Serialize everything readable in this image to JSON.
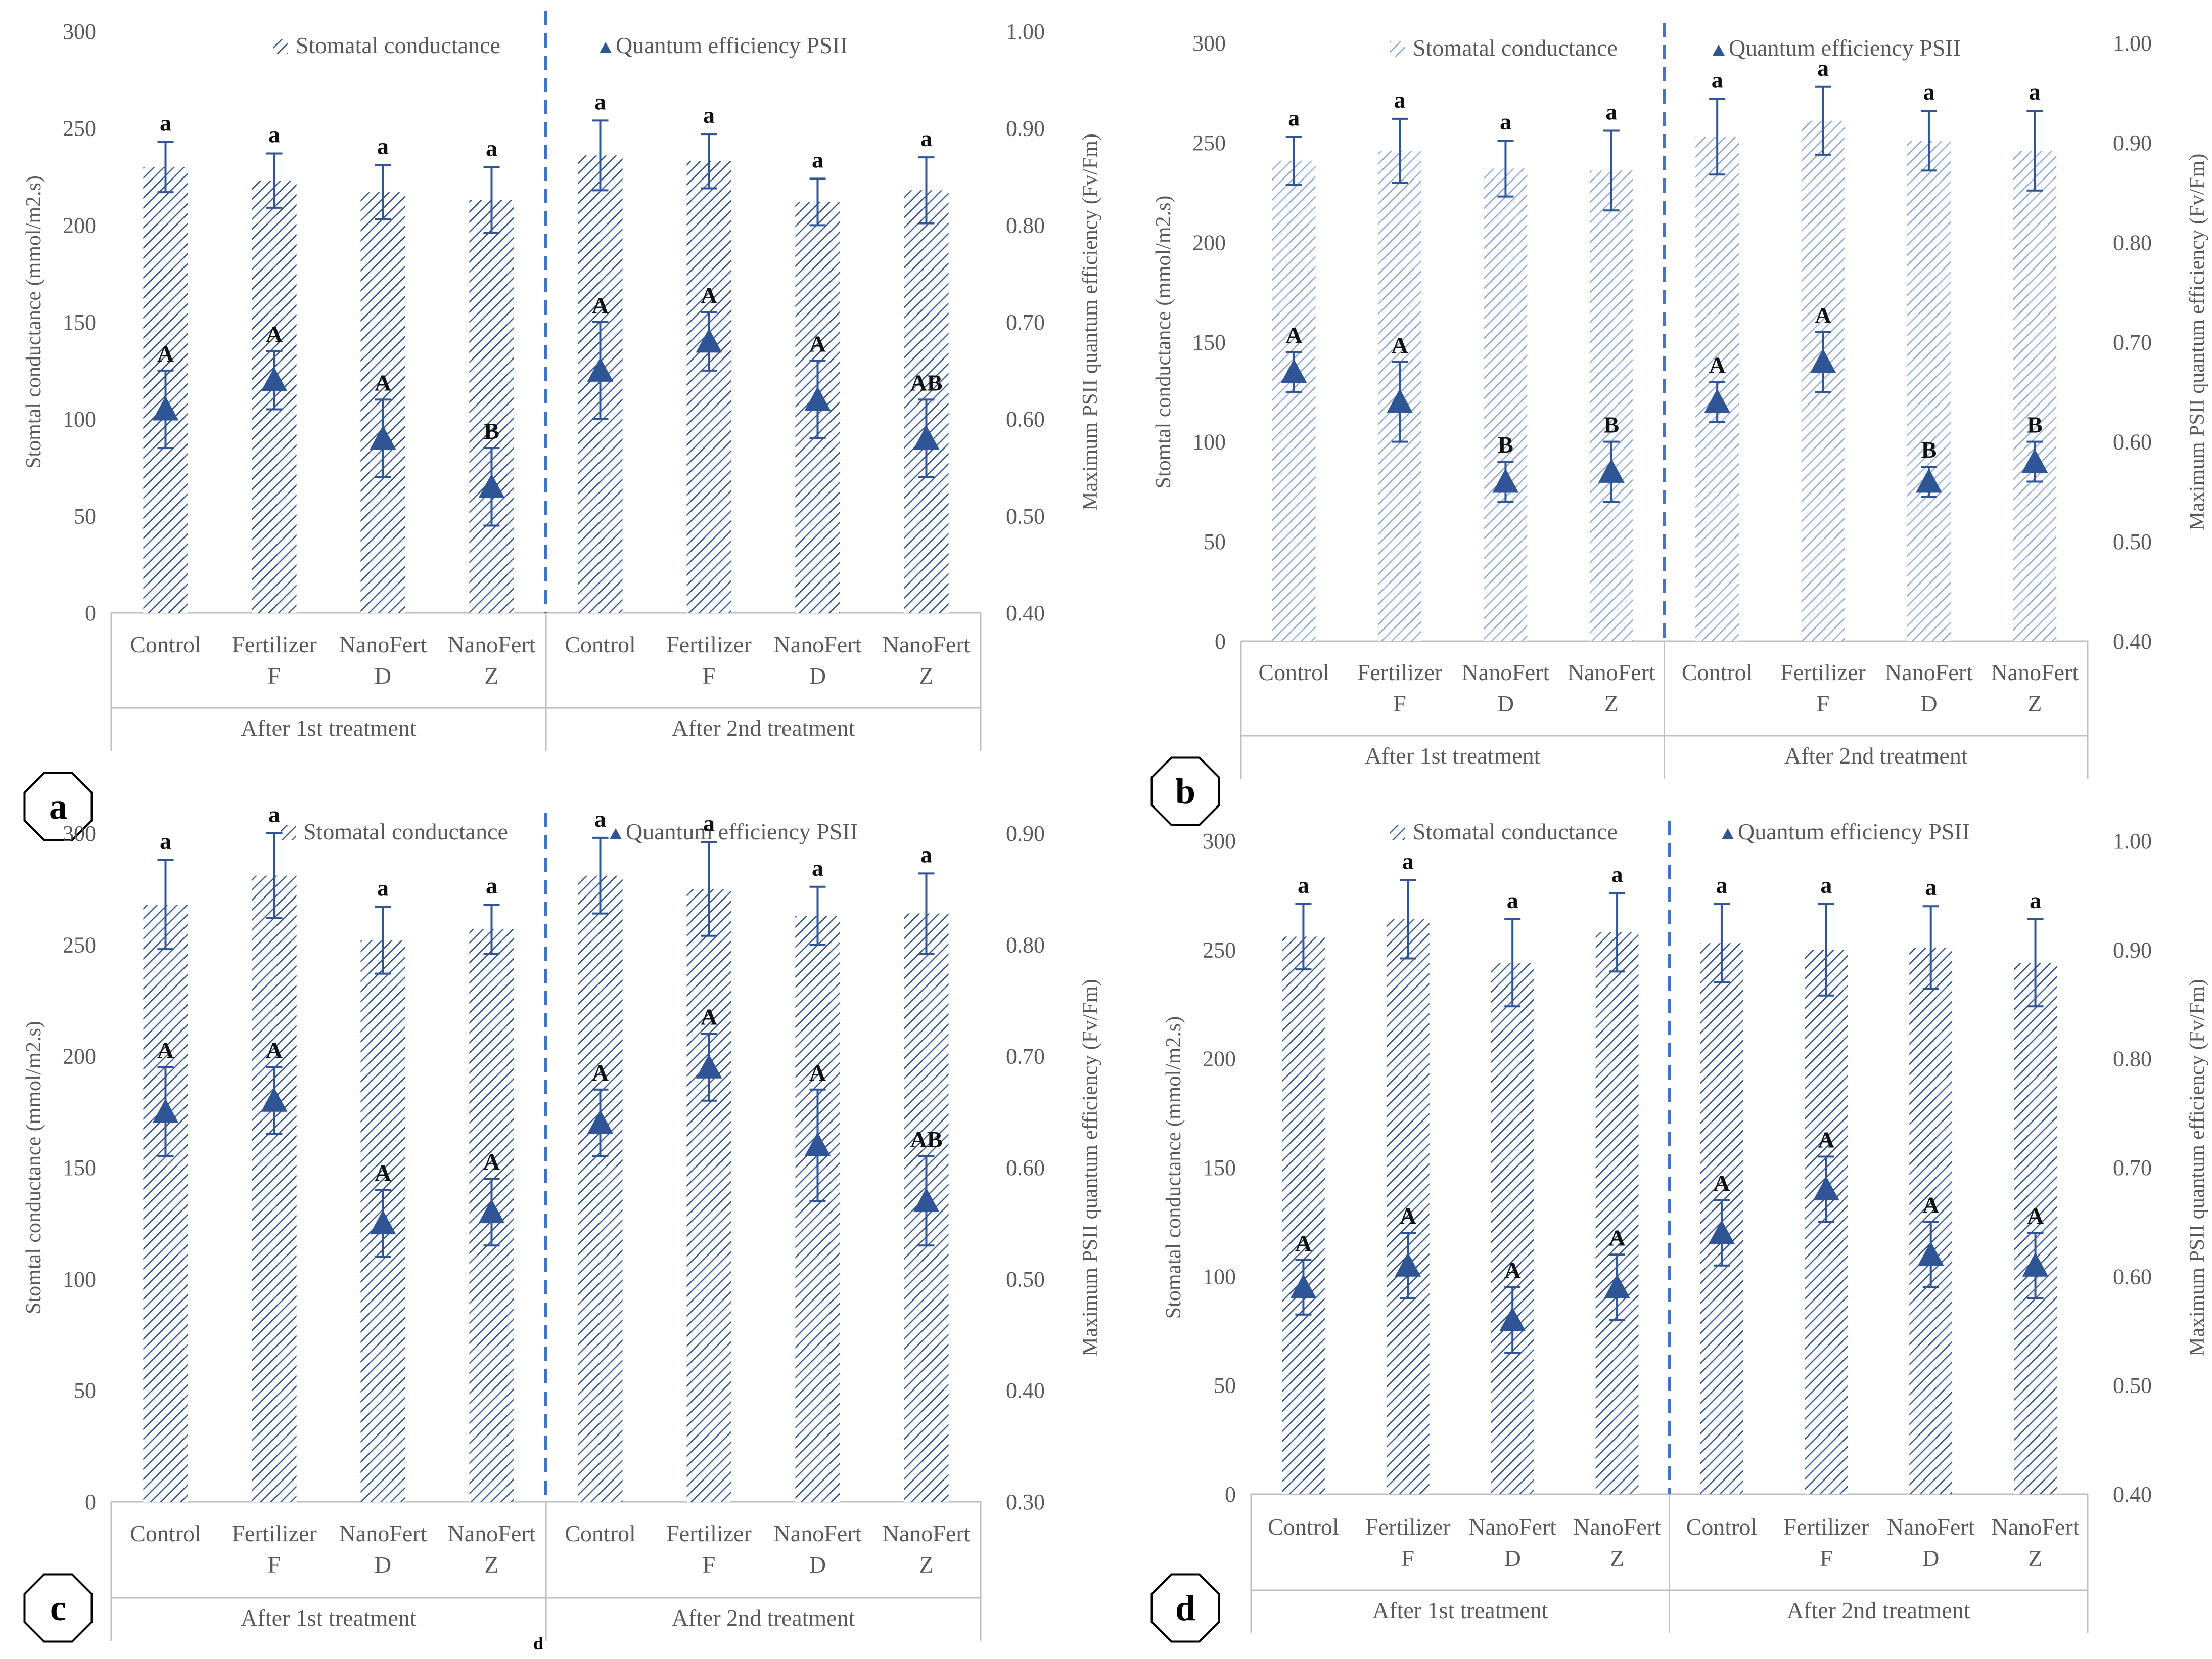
{
  "colors": {
    "bar": "#2F5597",
    "marker": "#2F5597",
    "axis": "#bfbfbf",
    "divider": "#4472C4",
    "text": "#595959"
  },
  "stray_label": "d",
  "chart_data": [
    {
      "panel": "a",
      "type": "bar+scatter",
      "legend": {
        "bar": "Stomatal conductance",
        "marker": "Quantum efficiency PSII"
      },
      "ylabel": "Stomtal conductance (mmol/m2.s)",
      "y2label": "Maximum PSII quantum efficiency (Fv/Fm)",
      "yticks": [
        "0",
        "50",
        "100",
        "150",
        "200",
        "250",
        "300"
      ],
      "y2ticks": [
        "0.40",
        "0.50",
        "0.60",
        "0.70",
        "0.80",
        "0.90",
        "1.00"
      ],
      "ylim": [
        0,
        300
      ],
      "y2lim": [
        0.4,
        1.0
      ],
      "groups": [
        "After 1st treatment",
        "After 2nd treatment"
      ],
      "categories": [
        [
          "Control",
          ""
        ],
        [
          "Fertilizer",
          "F"
        ],
        [
          "NanoFert",
          "D"
        ],
        [
          "NanoFert",
          "Z"
        ],
        [
          "Control",
          ""
        ],
        [
          "Fertilizer",
          "F"
        ],
        [
          "NanoFert",
          "D"
        ],
        [
          "NanoFert",
          "Z"
        ]
      ],
      "bars": [
        230,
        223,
        217,
        213,
        236,
        233,
        212,
        218
      ],
      "bar_err": [
        13,
        14,
        14,
        17,
        18,
        14,
        12,
        17
      ],
      "bar_sig": [
        "a",
        "a",
        "a",
        "a",
        "a",
        "a",
        "a",
        "a"
      ],
      "points": [
        0.61,
        0.64,
        0.58,
        0.53,
        0.65,
        0.68,
        0.62,
        0.58
      ],
      "point_err": [
        0.04,
        0.03,
        0.04,
        0.04,
        0.05,
        0.03,
        0.04,
        0.04
      ],
      "point_sig": [
        "A",
        "A",
        "A",
        "B",
        "A",
        "A",
        "A",
        "AB"
      ]
    },
    {
      "panel": "b",
      "type": "bar+scatter",
      "legend": {
        "bar": "Stomatal conductance",
        "marker": "Quantum efficiency PSII"
      },
      "ylabel": "Stomtal conductance (mmol/m2.s)",
      "y2label": "Maximum PSII quantum efficiency (Fv/Fm)",
      "yticks": [
        "0",
        "50",
        "100",
        "150",
        "200",
        "250",
        "300"
      ],
      "y2ticks": [
        "0.40",
        "0.50",
        "0.60",
        "0.70",
        "0.80",
        "0.90",
        "1.00"
      ],
      "ylim": [
        0,
        300
      ],
      "y2lim": [
        0.4,
        1.0
      ],
      "groups": [
        "After 1st treatment",
        "After 2nd treatment"
      ],
      "categories": [
        [
          "Control",
          ""
        ],
        [
          "Fertilizer",
          "F"
        ],
        [
          "NanoFert",
          "D"
        ],
        [
          "NanoFert",
          "Z"
        ],
        [
          "Control",
          ""
        ],
        [
          "Fertilizer",
          "F"
        ],
        [
          "NanoFert",
          "D"
        ],
        [
          "NanoFert",
          "Z"
        ]
      ],
      "bars": [
        241,
        246,
        237,
        236,
        253,
        261,
        251,
        246
      ],
      "bar_err": [
        12,
        16,
        14,
        20,
        19,
        17,
        15,
        20
      ],
      "bar_sig": [
        "a",
        "a",
        "a",
        "a",
        "a",
        "a",
        "a",
        "a"
      ],
      "points": [
        0.67,
        0.64,
        0.56,
        0.57,
        0.64,
        0.68,
        0.56,
        0.58
      ],
      "point_err": [
        0.02,
        0.04,
        0.02,
        0.03,
        0.02,
        0.03,
        0.015,
        0.02
      ],
      "point_sig": [
        "A",
        "A",
        "B",
        "B",
        "A",
        "A",
        "B",
        "B"
      ]
    },
    {
      "panel": "c",
      "type": "bar+scatter",
      "legend": {
        "bar": "Stomatal conductance",
        "marker": "Quantum efficiency PSII"
      },
      "ylabel": "Stomtal conductance (mmol/m2.s)",
      "y2label": "Maximum PSII quantum efficiency (Fv/Fm)",
      "yticks": [
        "0",
        "50",
        "100",
        "150",
        "200",
        "250",
        "300"
      ],
      "y2ticks": [
        "0.30",
        "0.40",
        "0.50",
        "0.60",
        "0.70",
        "0.80",
        "0.90"
      ],
      "ylim": [
        0,
        300
      ],
      "y2lim": [
        0.3,
        0.9
      ],
      "groups": [
        "After 1st treatment",
        "After 2nd treatment"
      ],
      "categories": [
        [
          "Control",
          ""
        ],
        [
          "Fertilizer",
          "F"
        ],
        [
          "NanoFert",
          "D"
        ],
        [
          "NanoFert",
          "Z"
        ],
        [
          "Control",
          ""
        ],
        [
          "Fertilizer",
          "F"
        ],
        [
          "NanoFert",
          "D"
        ],
        [
          "NanoFert",
          "Z"
        ]
      ],
      "bars": [
        268,
        281,
        252,
        257,
        281,
        275,
        263,
        264
      ],
      "bar_err": [
        20,
        19,
        15,
        11,
        17,
        21,
        13,
        18
      ],
      "bar_sig": [
        "a",
        "a",
        "a",
        "a",
        "a",
        "a",
        "a",
        "a"
      ],
      "points": [
        0.65,
        0.66,
        0.55,
        0.56,
        0.64,
        0.69,
        0.62,
        0.57
      ],
      "point_err": [
        0.04,
        0.03,
        0.03,
        0.03,
        0.03,
        0.03,
        0.05,
        0.04
      ],
      "point_sig": [
        "A",
        "A",
        "A",
        "A",
        "A",
        "A",
        "A",
        "AB"
      ]
    },
    {
      "panel": "d",
      "type": "bar+scatter",
      "legend": {
        "bar": "Stomatal conductance",
        "marker": "Quantum efficiency PSII"
      },
      "ylabel": "Stomatal conductance (mmol/m2.s)",
      "y2label": "Maximum PSII quantum efficiency (Fv/Fm)",
      "yticks": [
        "0",
        "50",
        "100",
        "150",
        "200",
        "250",
        "300"
      ],
      "y2ticks": [
        "0.40",
        "0.50",
        "0.60",
        "0.70",
        "0.80",
        "0.90",
        "1.00"
      ],
      "ylim": [
        0,
        300
      ],
      "y2lim": [
        0.4,
        1.0
      ],
      "groups": [
        "After 1st treatment",
        "After 2nd treatment"
      ],
      "categories": [
        [
          "Control",
          ""
        ],
        [
          "Fertilizer",
          "F"
        ],
        [
          "NanoFert",
          "D"
        ],
        [
          "NanoFert",
          "Z"
        ],
        [
          "Control",
          ""
        ],
        [
          "Fertilizer",
          "F"
        ],
        [
          "NanoFert",
          "D"
        ],
        [
          "NanoFert",
          "Z"
        ]
      ],
      "bars": [
        256,
        264,
        244,
        258,
        253,
        250,
        251,
        244
      ],
      "bar_err": [
        15,
        18,
        20,
        18,
        18,
        21,
        19,
        20
      ],
      "bar_sig": [
        "a",
        "a",
        "a",
        "a",
        "a",
        "a",
        "a",
        "a"
      ],
      "points": [
        0.59,
        0.61,
        0.56,
        0.59,
        0.64,
        0.68,
        0.62,
        0.61
      ],
      "point_err": [
        0.025,
        0.03,
        0.03,
        0.03,
        0.03,
        0.03,
        0.03,
        0.03
      ],
      "point_sig": [
        "A",
        "A",
        "A",
        "A",
        "A",
        "A",
        "A",
        "A"
      ]
    }
  ]
}
